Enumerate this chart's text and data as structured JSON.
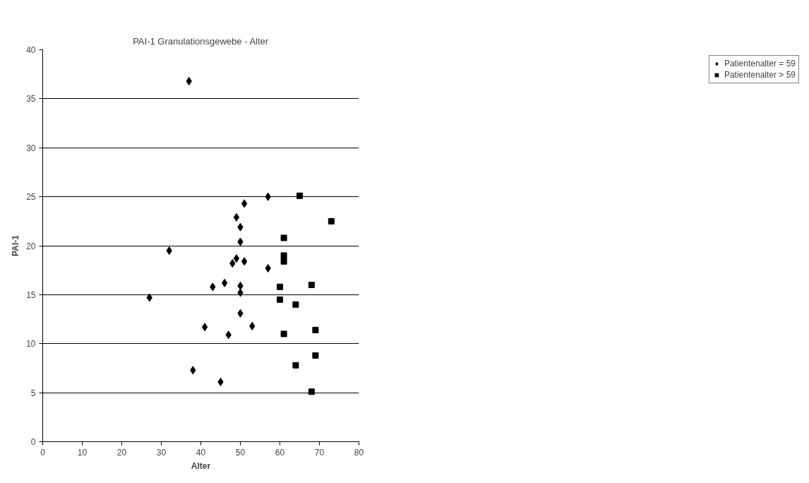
{
  "chart_data": {
    "type": "scatter",
    "title": "PAI-1 Granulationsgewebe - Alter",
    "xlabel": "Alter",
    "ylabel": "PAI-1",
    "xlim": [
      0,
      80
    ],
    "xticks": [
      0,
      10,
      20,
      30,
      40,
      50,
      60,
      70,
      80
    ],
    "ylim": [
      0,
      40
    ],
    "yticks": [
      0,
      5,
      10,
      15,
      20,
      25,
      30,
      35,
      40
    ],
    "grid": "y",
    "legend": "right",
    "series": [
      {
        "name": "Patientenalter = 59",
        "color": "#000000",
        "marker": "diamond",
        "x": [
          27,
          32,
          37,
          38,
          41,
          43,
          45,
          46,
          47,
          48,
          49,
          49,
          50,
          50,
          50,
          50,
          50,
          51,
          51,
          53,
          57,
          57
        ],
        "values": [
          14.7,
          19.5,
          36.8,
          7.3,
          11.7,
          15.8,
          6.1,
          16.2,
          10.9,
          18.2,
          22.9,
          18.7,
          21.9,
          20.4,
          15.9,
          15.2,
          13.1,
          24.3,
          18.4,
          11.8,
          25.0,
          17.7
        ]
      },
      {
        "name": "Patientenalter > 59",
        "color": "#000000",
        "marker": "square",
        "x": [
          60,
          60,
          61,
          61,
          61,
          61,
          64,
          64,
          65,
          68,
          68,
          69,
          69,
          73
        ],
        "values": [
          15.8,
          14.5,
          20.8,
          19.0,
          18.4,
          11.0,
          14.0,
          7.8,
          25.1,
          16.0,
          5.1,
          11.4,
          8.8,
          22.5
        ]
      }
    ]
  }
}
